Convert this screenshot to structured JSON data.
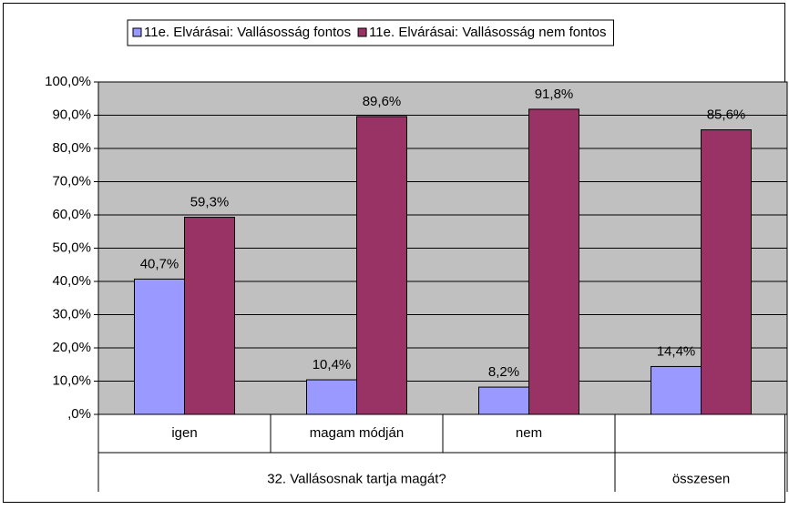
{
  "chart_data": {
    "type": "bar",
    "categories": [
      "igen",
      "magam módján",
      "nem",
      null
    ],
    "category_groups": [
      {
        "label": "32. Vallásosnak tartja magát?",
        "members": [
          "igen",
          "magam módján",
          "nem"
        ]
      },
      {
        "label": "összesen",
        "members": [
          null
        ]
      }
    ],
    "series": [
      {
        "name": "11e. Elvárásai: Vallásosság fontos",
        "color": "#9999ff",
        "values": [
          40.7,
          10.4,
          8.2,
          14.4
        ],
        "value_labels": [
          "40,7%",
          "10,4%",
          "8,2%",
          "14,4%"
        ]
      },
      {
        "name": "11e. Elvárásai: Vallásosság nem fontos",
        "color": "#993366",
        "values": [
          59.3,
          89.6,
          91.8,
          85.6
        ],
        "value_labels": [
          "59,3%",
          "89,6%",
          "91,8%",
          "85,6%"
        ]
      }
    ],
    "ylim": [
      0,
      100
    ],
    "yticks": [
      {
        "value": 0,
        "label": ",0%"
      },
      {
        "value": 10,
        "label": "10,0%"
      },
      {
        "value": 20,
        "label": "20,0%"
      },
      {
        "value": 30,
        "label": "30,0%"
      },
      {
        "value": 40,
        "label": "40,0%"
      },
      {
        "value": 50,
        "label": "50,0%"
      },
      {
        "value": 60,
        "label": "60,0%"
      },
      {
        "value": 70,
        "label": "70,0%"
      },
      {
        "value": 80,
        "label": "80,0%"
      },
      {
        "value": 90,
        "label": "90,0%"
      },
      {
        "value": 100,
        "label": "100,0%"
      }
    ],
    "grid": true,
    "legend": "top",
    "plot_background": "#c0c0c0"
  }
}
